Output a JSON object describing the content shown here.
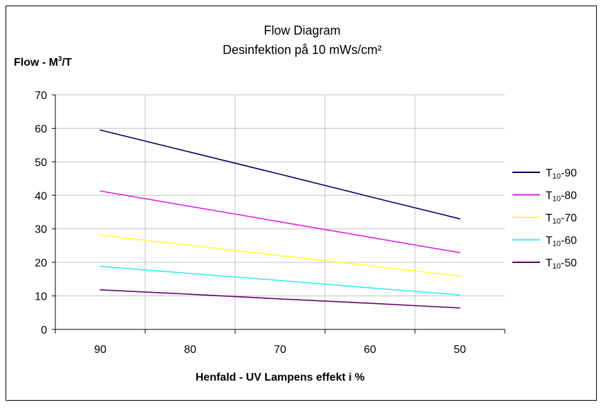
{
  "chart_data": {
    "type": "line",
    "title": "Flow Diagram",
    "subtitle": "Desinfektion på 10 mWs/cm²",
    "ylabel_main": "Flow  - M",
    "ylabel_sup": "3",
    "ylabel_tail": "/T",
    "xlabel": "Henfald - UV Lampens effekt i %",
    "categories": [
      "90",
      "80",
      "70",
      "60",
      "50"
    ],
    "ylim": [
      0,
      70
    ],
    "yticks": [
      "0",
      "10",
      "20",
      "30",
      "40",
      "50",
      "60",
      "70"
    ],
    "grid": true,
    "legend_position": "right",
    "series": [
      {
        "name_main": "T",
        "name_sub": "10",
        "name_tail": "-90",
        "color": "#000066",
        "values": [
          59.5,
          52.9,
          46.3,
          39.6,
          33.0
        ]
      },
      {
        "name_main": "T",
        "name_sub": "10",
        "name_tail": "-80",
        "color": "#E020E0",
        "values": [
          41.3,
          36.7,
          32.1,
          27.5,
          22.9
        ]
      },
      {
        "name_main": "T",
        "name_sub": "10",
        "name_tail": "-70",
        "color": "#FFFF33",
        "values": [
          28.1,
          25.1,
          22.0,
          19.0,
          15.9
        ]
      },
      {
        "name_main": "T",
        "name_sub": "10",
        "name_tail": "-60",
        "color": "#33EEEE",
        "values": [
          18.8,
          16.7,
          14.6,
          12.4,
          10.3
        ]
      },
      {
        "name_main": "T",
        "name_sub": "10",
        "name_tail": "-50",
        "color": "#660066",
        "values": [
          11.8,
          10.5,
          9.1,
          7.8,
          6.4
        ]
      }
    ]
  }
}
